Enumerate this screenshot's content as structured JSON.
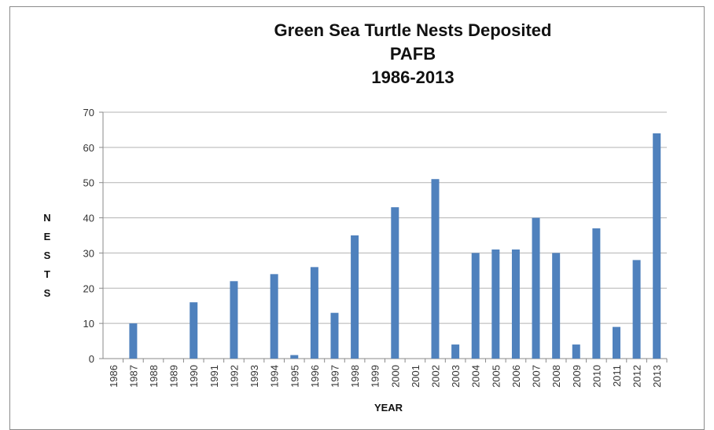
{
  "chart_data": {
    "type": "bar",
    "title_lines": [
      "Green Sea Turtle Nests Deposited",
      "PAFB",
      "1986-2013"
    ],
    "xlabel": "YEAR",
    "ylabel": "NESTS",
    "ylim": [
      0,
      70
    ],
    "yticks": [
      0,
      10,
      20,
      30,
      40,
      50,
      60,
      70
    ],
    "grid": true,
    "bar_color": "#4f81bd",
    "categories": [
      "1986",
      "1987",
      "1988",
      "1989",
      "1990",
      "1991",
      "1992",
      "1993",
      "1994",
      "1995",
      "1996",
      "1997",
      "1998",
      "1999",
      "2000",
      "2001",
      "2002",
      "2003",
      "2004",
      "2005",
      "2006",
      "2007",
      "2008",
      "2009",
      "2010",
      "2011",
      "2012",
      "2013"
    ],
    "values": [
      0,
      10,
      0,
      0,
      16,
      0,
      22,
      0,
      24,
      1,
      26,
      13,
      35,
      0,
      43,
      0,
      51,
      4,
      30,
      31,
      31,
      40,
      30,
      4,
      37,
      9,
      28,
      64
    ]
  }
}
